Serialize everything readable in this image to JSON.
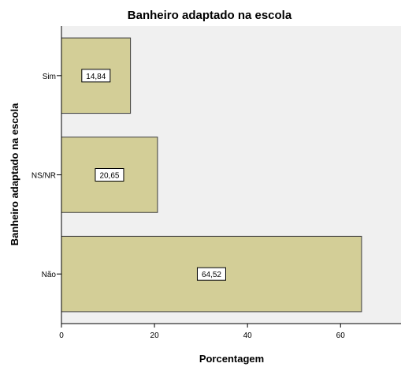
{
  "chart_data": {
    "type": "bar",
    "orientation": "horizontal",
    "title": "Banheiro adaptado na escola",
    "xlabel": "Porcentagem",
    "ylabel": "Banheiro adaptado na escola",
    "categories": [
      "Sim",
      "NS/NR",
      "Não"
    ],
    "values": [
      14.84,
      20.65,
      64.52
    ],
    "data_labels": [
      "14,84",
      "20,65",
      "64,52"
    ],
    "xlim": [
      0,
      73
    ],
    "x_ticks": [
      0,
      20,
      40,
      60
    ],
    "x_tick_labels": [
      "0",
      "20",
      "40",
      "60"
    ],
    "grid": false,
    "legend": "none"
  },
  "colors": {
    "plot_background": "#f0f0f0",
    "bar_fill": "#d3ce97",
    "bar_stroke": "#3c3c3c",
    "label_box_fill": "#ffffff"
  }
}
